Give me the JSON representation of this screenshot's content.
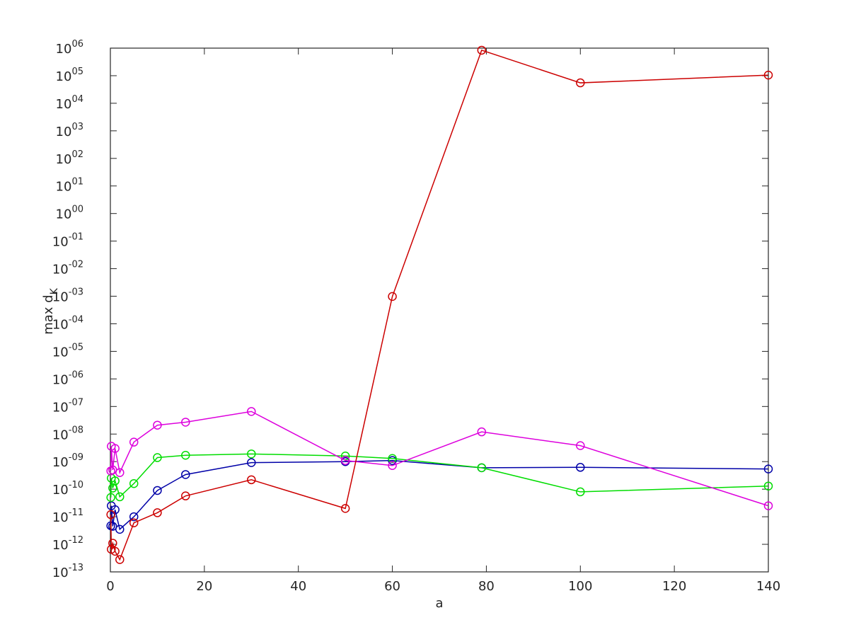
{
  "chart_data": {
    "type": "line",
    "xlabel": "a",
    "ylabel": "max d",
    "ylabel_sub": "K",
    "x": [
      0.1,
      0.2,
      0.5,
      1,
      2,
      5,
      10,
      16,
      30,
      50,
      60,
      79,
      100,
      140
    ],
    "series": [
      {
        "color": "#0000a8",
        "values": [
          4.7e-12,
          2.5e-11,
          4.5e-12,
          1.8e-11,
          3.5e-12,
          1e-11,
          9e-11,
          3.4e-10,
          9.2e-10,
          1e-09,
          1.1e-09,
          6e-10,
          6.2e-10,
          5.4e-10
        ]
      },
      {
        "color": "#00dd00",
        "values": [
          5e-11,
          2.5e-10,
          1.1e-10,
          2e-10,
          5.3e-11,
          1.6e-10,
          1.4e-09,
          1.7e-09,
          1.9e-09,
          1.6e-09,
          1.3e-09,
          6e-10,
          8e-11,
          1.3e-10
        ]
      },
      {
        "color": "#dd00dd",
        "values": [
          4.6e-10,
          3.6e-09,
          5e-10,
          3e-09,
          4e-10,
          5.1e-09,
          2.1e-08,
          2.7e-08,
          6.6e-08,
          1.1e-09,
          7.2e-10,
          1.2e-08,
          3.8e-09,
          2.5e-11
        ]
      },
      {
        "color": "#cc0000",
        "values": [
          1.2e-11,
          6.6e-13,
          1.1e-12,
          5.6e-13,
          2.8e-13,
          6e-12,
          1.4e-11,
          5.7e-11,
          2.2e-10,
          2e-11,
          0.00098,
          840000,
          55000,
          105000
        ]
      }
    ],
    "xlim": [
      0,
      140
    ],
    "xticks": [
      0,
      20,
      40,
      60,
      80,
      100,
      120,
      140
    ],
    "ylim": [
      1e-13,
      1000000
    ],
    "log_y": true,
    "yticks": [
      {
        "value": 1e-13,
        "label": "10",
        "sup": "-13"
      },
      {
        "value": 1e-12,
        "label": "10",
        "sup": "-12"
      },
      {
        "value": 1e-11,
        "label": "10",
        "sup": "-11"
      },
      {
        "value": 1e-10,
        "label": "10",
        "sup": "-10"
      },
      {
        "value": 1e-09,
        "label": "10",
        "sup": "-09"
      },
      {
        "value": 1e-08,
        "label": "10",
        "sup": "-08"
      },
      {
        "value": 1e-07,
        "label": "10",
        "sup": "-07"
      },
      {
        "value": 1e-06,
        "label": "10",
        "sup": "-06"
      },
      {
        "value": 1e-05,
        "label": "10",
        "sup": "-05"
      },
      {
        "value": 0.0001,
        "label": "10",
        "sup": "-04"
      },
      {
        "value": 0.001,
        "label": "10",
        "sup": "-03"
      },
      {
        "value": 0.01,
        "label": "10",
        "sup": "-02"
      },
      {
        "value": 0.1,
        "label": "10",
        "sup": "-01"
      },
      {
        "value": 1,
        "label": "10",
        "sup": "00"
      },
      {
        "value": 10,
        "label": "10",
        "sup": "01"
      },
      {
        "value": 100,
        "label": "10",
        "sup": "02"
      },
      {
        "value": 1000,
        "label": "10",
        "sup": "03"
      },
      {
        "value": 10000,
        "label": "10",
        "sup": "04"
      },
      {
        "value": 100000,
        "label": "10",
        "sup": "05"
      },
      {
        "value": 1000000,
        "label": "10",
        "sup": "06"
      }
    ]
  }
}
